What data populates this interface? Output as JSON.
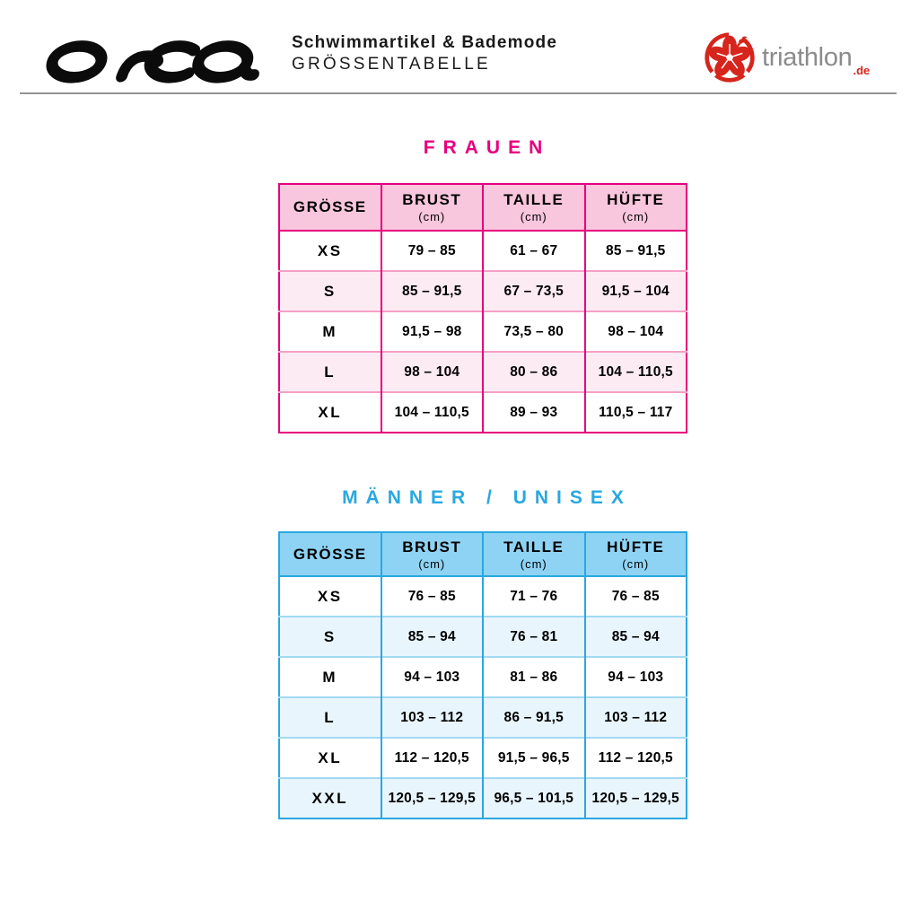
{
  "page": {
    "background": "#ffffff"
  },
  "header": {
    "brand": "orca",
    "subtitle_line1": "Schwimmartikel & Bademode",
    "subtitle_line2": "GRÖSSENTABELLE",
    "partner": {
      "name": "triathlon",
      "tld": ".de"
    }
  },
  "colors": {
    "women_accent": "#e6007e",
    "women_header_bg": "#f8c6dd",
    "women_row_tint": "#fdebf4",
    "women_row_separator": "#f5a0c6",
    "men_accent": "#29a8e0",
    "men_header_bg": "#8ed3f4",
    "men_row_tint": "#e9f5fc",
    "men_row_separator": "#a2d9f3",
    "cell_text": "#000000",
    "brand_text": "#0b0b0b",
    "partner_gray": "#8b8b8b",
    "partner_red": "#d6251c",
    "divider_gray": "#949494"
  },
  "tables": [
    {
      "id": "frauen",
      "title": "FRAUEN",
      "columns": [
        {
          "label": "GRÖSSE",
          "unit": ""
        },
        {
          "label": "BRUST",
          "unit": "(cm)"
        },
        {
          "label": "TAILLE",
          "unit": "(cm)"
        },
        {
          "label": "HÜFTE",
          "unit": "(cm)"
        }
      ],
      "rows": [
        {
          "size": "XS",
          "values": [
            "79 – 85",
            "61 – 67",
            "85 – 91,5"
          ]
        },
        {
          "size": "S",
          "values": [
            "85 – 91,5",
            "67 – 73,5",
            "91,5 – 104"
          ]
        },
        {
          "size": "M",
          "values": [
            "91,5 – 98",
            "73,5 – 80",
            "98 – 104"
          ]
        },
        {
          "size": "L",
          "values": [
            "98 – 104",
            "80 – 86",
            "104 – 110,5"
          ]
        },
        {
          "size": "XL",
          "values": [
            "104 – 110,5",
            "89 – 93",
            "110,5 – 117"
          ]
        }
      ]
    },
    {
      "id": "maenner-unisex",
      "title": "MÄNNER / UNISEX",
      "columns": [
        {
          "label": "GRÖSSE",
          "unit": ""
        },
        {
          "label": "BRUST",
          "unit": "(cm)"
        },
        {
          "label": "TAILLE",
          "unit": "(cm)"
        },
        {
          "label": "HÜFTE",
          "unit": "(cm)"
        }
      ],
      "rows": [
        {
          "size": "XS",
          "values": [
            "76 – 85",
            "71 – 76",
            "76 – 85"
          ]
        },
        {
          "size": "S",
          "values": [
            "85 – 94",
            "76 – 81",
            "85 – 94"
          ]
        },
        {
          "size": "M",
          "values": [
            "94 – 103",
            "81 – 86",
            "94 – 103"
          ]
        },
        {
          "size": "L",
          "values": [
            "103 – 112",
            "86 – 91,5",
            "103 – 112"
          ]
        },
        {
          "size": "XL",
          "values": [
            "112 – 120,5",
            "91,5 – 96,5",
            "112 – 120,5"
          ]
        },
        {
          "size": "XXL",
          "values": [
            "120,5 – 129,5",
            "96,5 – 101,5",
            "120,5 – 129,5"
          ]
        }
      ]
    }
  ]
}
